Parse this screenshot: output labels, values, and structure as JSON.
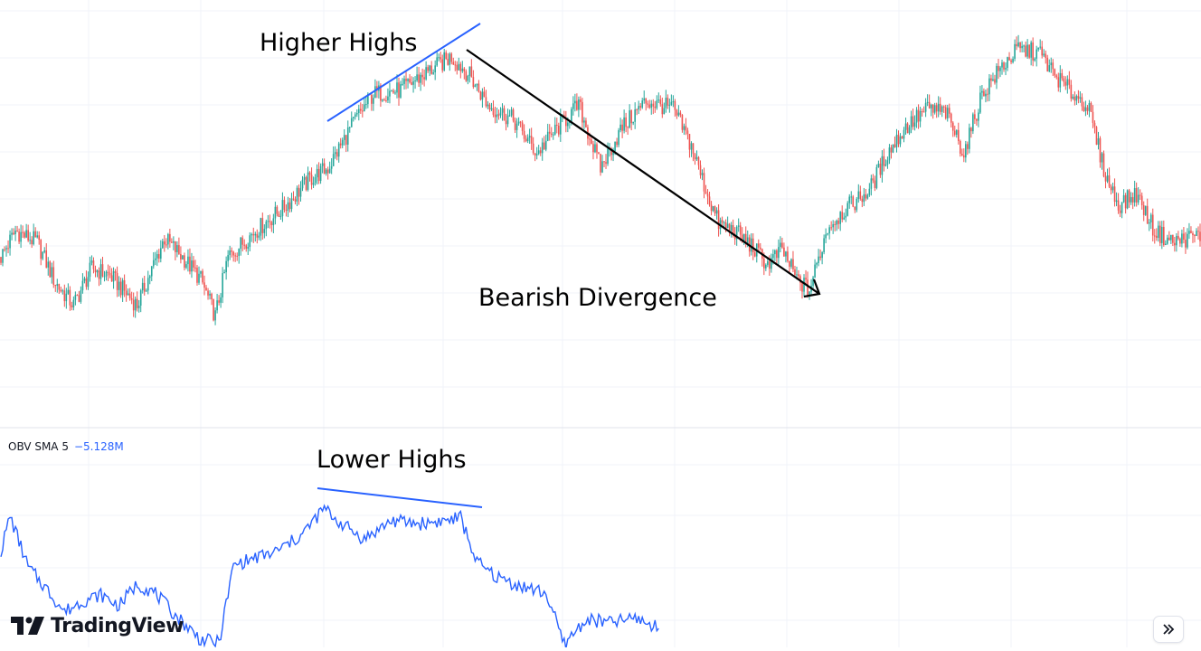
{
  "indicator": {
    "name": "OBV SMA 5",
    "value": "−5.128M"
  },
  "annotations": {
    "higher_highs": "Higher Highs",
    "bearish_divergence": "Bearish Divergence",
    "lower_highs": "Lower Highs"
  },
  "branding": {
    "logo_text": "TradingView"
  },
  "controls": {
    "scroll_button_icon": "double-chevron-right-icon"
  },
  "colors": {
    "up": "#26a69a",
    "down": "#ef5350",
    "obv_line": "#2962ff",
    "trend_line": "#2962ff",
    "arrow": "#000000",
    "grid": "#f0f3fa"
  },
  "chart_data": [
    {
      "type": "candlestick",
      "title": "",
      "xlabel": "",
      "ylabel": "",
      "grid": true,
      "note": "No price axis shown; y values are relative price level (0-100 scale, higher = higher price).",
      "ylim": [
        0,
        100
      ],
      "anchor_points": [
        [
          0,
          38
        ],
        [
          8,
          45
        ],
        [
          20,
          42
        ],
        [
          30,
          31
        ],
        [
          40,
          25
        ],
        [
          50,
          35
        ],
        [
          60,
          33
        ],
        [
          75,
          25
        ],
        [
          90,
          43
        ],
        [
          100,
          38
        ],
        [
          110,
          32
        ],
        [
          118,
          22
        ],
        [
          125,
          38
        ],
        [
          140,
          45
        ],
        [
          155,
          51
        ],
        [
          170,
          59
        ],
        [
          180,
          62
        ],
        [
          195,
          75
        ],
        [
          205,
          82
        ],
        [
          220,
          83
        ],
        [
          235,
          88
        ],
        [
          248,
          92
        ],
        [
          258,
          87
        ],
        [
          268,
          79
        ],
        [
          282,
          75
        ],
        [
          295,
          66
        ],
        [
          305,
          72
        ],
        [
          318,
          79
        ],
        [
          330,
          62
        ],
        [
          342,
          73
        ],
        [
          355,
          80
        ],
        [
          370,
          78
        ],
        [
          380,
          68
        ],
        [
          388,
          56
        ],
        [
          395,
          47
        ],
        [
          404,
          45
        ],
        [
          413,
          41
        ],
        [
          422,
          36
        ],
        [
          430,
          40
        ],
        [
          438,
          32
        ],
        [
          445,
          29
        ],
        [
          455,
          46
        ],
        [
          465,
          51
        ],
        [
          478,
          56
        ],
        [
          488,
          66
        ],
        [
          498,
          73
        ],
        [
          510,
          78
        ],
        [
          520,
          77
        ],
        [
          530,
          66
        ],
        [
          540,
          82
        ],
        [
          552,
          90
        ],
        [
          560,
          94
        ],
        [
          572,
          93
        ],
        [
          580,
          87
        ],
        [
          590,
          82
        ],
        [
          598,
          79
        ],
        [
          608,
          60
        ],
        [
          615,
          52
        ],
        [
          625,
          55
        ],
        [
          635,
          45
        ],
        [
          645,
          42
        ],
        [
          660,
          44
        ]
      ],
      "bar_count": 661
    },
    {
      "type": "line",
      "series": [
        {
          "name": "OBV SMA 5"
        }
      ],
      "note": "On Balance Volume 5-period SMA; series ends near bar 362 (Lower Highs peak around bars 180 and 250).",
      "ylim": [
        0,
        100
      ],
      "anchor_points": [
        [
          0,
          62
        ],
        [
          5,
          85
        ],
        [
          15,
          52
        ],
        [
          25,
          38
        ],
        [
          35,
          23
        ],
        [
          45,
          30
        ],
        [
          55,
          34
        ],
        [
          65,
          27
        ],
        [
          75,
          41
        ],
        [
          85,
          35
        ],
        [
          95,
          22
        ],
        [
          110,
          5
        ],
        [
          120,
          3
        ],
        [
          128,
          53
        ],
        [
          140,
          58
        ],
        [
          150,
          61
        ],
        [
          165,
          72
        ],
        [
          178,
          90
        ],
        [
          185,
          82
        ],
        [
          200,
          70
        ],
        [
          215,
          82
        ],
        [
          230,
          80
        ],
        [
          245,
          82
        ],
        [
          253,
          84
        ],
        [
          262,
          55
        ],
        [
          272,
          46
        ],
        [
          285,
          40
        ],
        [
          300,
          35
        ],
        [
          310,
          2
        ],
        [
          322,
          18
        ],
        [
          335,
          16
        ],
        [
          350,
          19
        ],
        [
          362,
          12
        ]
      ],
      "bar_count": 363
    }
  ]
}
